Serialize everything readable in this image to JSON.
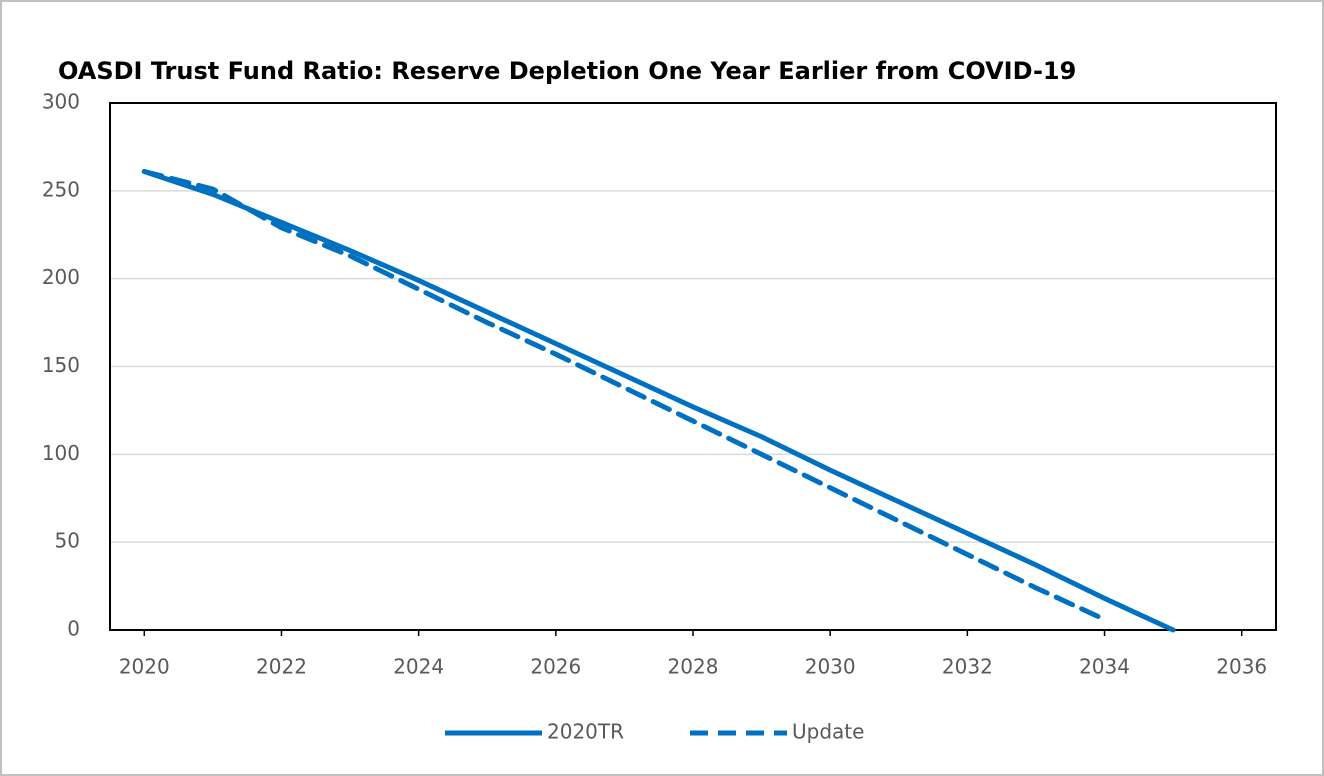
{
  "chart_data": {
    "type": "line",
    "title": "OASDI Trust Fund Ratio:  Reserve Depletion One Year Earlier from COVID-19",
    "x": [
      2020,
      2021,
      2022,
      2023,
      2024,
      2025,
      2026,
      2027,
      2028,
      2029,
      2030,
      2031,
      2032,
      2033,
      2034,
      2035
    ],
    "series": [
      {
        "name": "2020TR",
        "color": "#0070c0",
        "dash": false,
        "values": [
          261,
          248,
          232,
          216,
          199,
          181,
          163,
          145,
          127,
          110,
          91,
          73,
          55,
          37,
          18,
          0
        ]
      },
      {
        "name": "Update",
        "color": "#0070c0",
        "dash": true,
        "values": [
          261,
          251,
          229,
          213,
          194,
          175,
          157,
          138,
          119,
          100,
          81,
          62,
          43,
          24,
          6,
          null
        ]
      }
    ],
    "xlim": [
      2019.5,
      2036.5
    ],
    "xticks": [
      2020,
      2022,
      2024,
      2026,
      2028,
      2030,
      2032,
      2034,
      2036
    ],
    "ylim": [
      0,
      300
    ],
    "yticks": [
      0,
      50,
      100,
      150,
      200,
      250,
      300
    ],
    "grid": true,
    "legend": "bottom"
  }
}
